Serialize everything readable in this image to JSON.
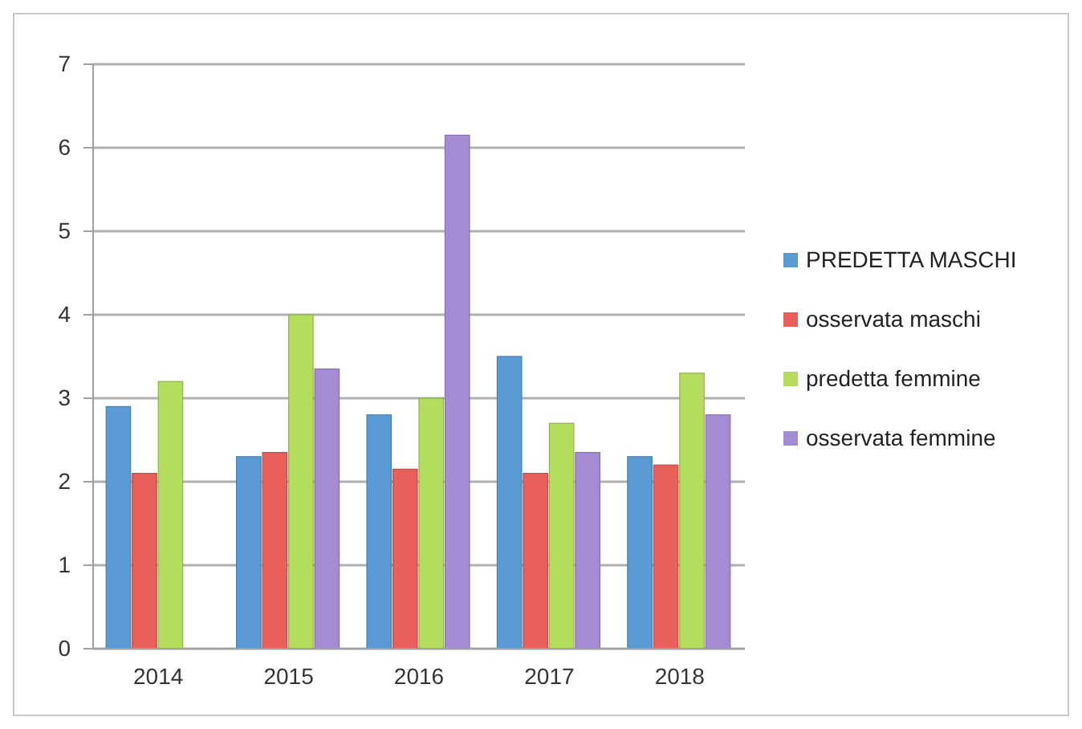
{
  "chart_data": {
    "type": "bar",
    "categories": [
      "2014",
      "2015",
      "2016",
      "2017",
      "2018"
    ],
    "series": [
      {
        "name": "PREDETTA MASCHI",
        "color": "#5b9bd5",
        "values": [
          2.9,
          2.3,
          2.8,
          3.5,
          2.3
        ]
      },
      {
        "name": "osservata maschi",
        "color": "#e9605a",
        "values": [
          2.1,
          2.35,
          2.15,
          2.1,
          2.2
        ]
      },
      {
        "name": "predetta femmine",
        "color": "#b5dd5d",
        "values": [
          3.2,
          4.0,
          3.0,
          2.7,
          3.3
        ]
      },
      {
        "name": "osservata femmine",
        "color": "#a58bd4",
        "values": [
          0,
          3.35,
          6.15,
          2.35,
          2.8
        ]
      }
    ],
    "ylim": [
      0,
      7
    ],
    "yticks": [
      0,
      1,
      2,
      3,
      4,
      5,
      6,
      7
    ],
    "grid": "y",
    "legend": "right"
  }
}
